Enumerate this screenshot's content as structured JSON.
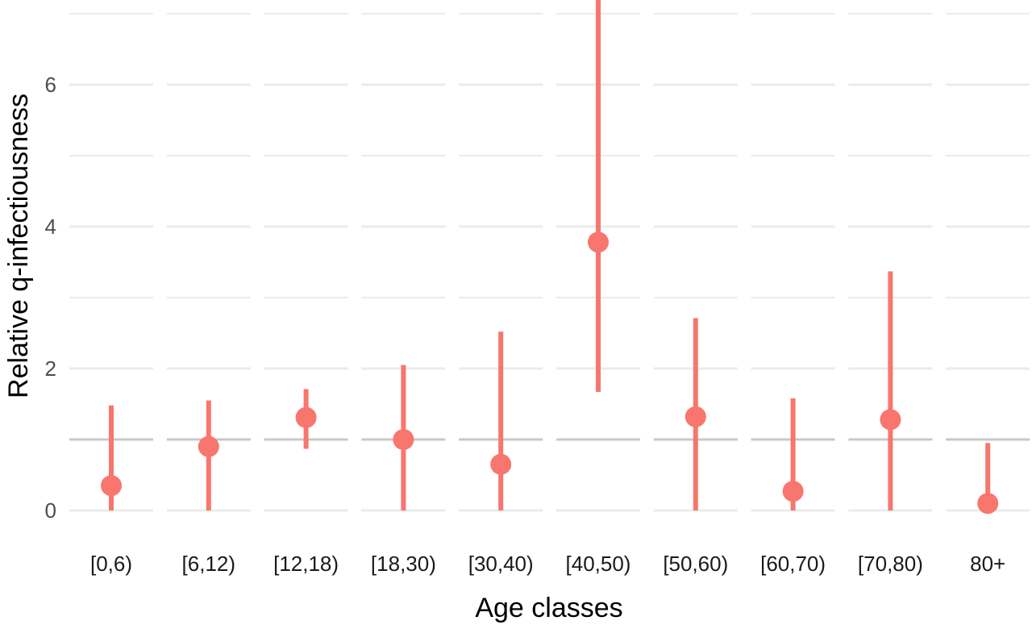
{
  "chart_data": {
    "type": "scatter",
    "title": "",
    "xlabel": "Age classes",
    "ylabel": "Relative q-infectiousness",
    "categories": [
      "[0,6)",
      "[6,12)",
      "[12,18)",
      "[18,30)",
      "[30,40)",
      "[40,50)",
      "[50,60)",
      "[60,70)",
      "[70,80)",
      "80+"
    ],
    "estimate": [
      0.35,
      0.9,
      1.31,
      1.0,
      0.65,
      3.78,
      1.32,
      0.27,
      1.28,
      0.1
    ],
    "lower": [
      0.0,
      0.0,
      0.87,
      0.0,
      0.0,
      1.67,
      0.0,
      0.0,
      0.0,
      0.0
    ],
    "upper": [
      1.48,
      1.55,
      1.71,
      2.05,
      2.52,
      7.2,
      2.71,
      1.58,
      3.37,
      0.95
    ],
    "reference_line": 1,
    "ylim": [
      -0.1,
      7.2
    ],
    "y_ticks": [
      "0",
      "2",
      "4",
      "6"
    ],
    "grid": true,
    "colors": {
      "point": "#F8766D",
      "reference": "#c8c8c8",
      "grid": "#ebebeb"
    }
  }
}
